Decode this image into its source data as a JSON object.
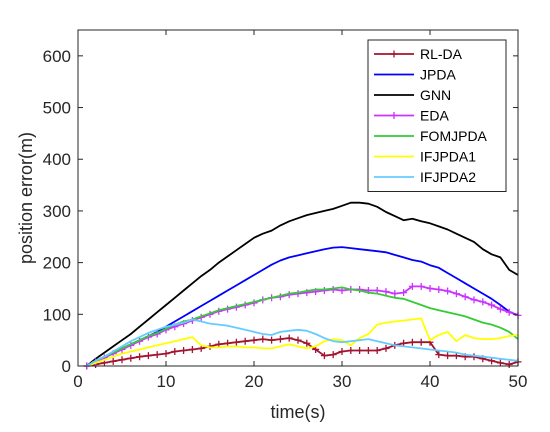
{
  "chart_data": {
    "type": "line",
    "xlabel": "time(s)",
    "ylabel": "position error(m)",
    "xlim": [
      0,
      50
    ],
    "ylim": [
      0,
      650
    ],
    "xticks": [
      0,
      10,
      20,
      30,
      40,
      50
    ],
    "yticks": [
      0,
      100,
      200,
      300,
      400,
      500,
      600
    ],
    "grid": false,
    "legend_position": "top-right",
    "x": [
      1,
      2,
      3,
      4,
      5,
      6,
      7,
      8,
      9,
      10,
      11,
      12,
      13,
      14,
      15,
      16,
      17,
      18,
      19,
      20,
      21,
      22,
      23,
      24,
      25,
      26,
      27,
      28,
      29,
      30,
      31,
      32,
      33,
      34,
      35,
      36,
      37,
      38,
      39,
      40,
      41,
      42,
      43,
      44,
      45,
      46,
      47,
      48,
      49,
      50
    ],
    "series": [
      {
        "name": "RL-DA",
        "color": "#A2142F",
        "marker": "plus",
        "values": [
          0,
          3,
          6,
          9,
          12,
          15,
          18,
          20,
          22,
          24,
          28,
          30,
          32,
          34,
          38,
          42,
          44,
          46,
          48,
          50,
          52,
          50,
          52,
          54,
          50,
          44,
          32,
          20,
          22,
          28,
          30,
          30,
          30,
          30,
          34,
          40,
          44,
          46,
          46,
          46,
          22,
          20,
          20,
          18,
          18,
          14,
          10,
          6,
          3,
          8
        ]
      },
      {
        "name": "JPDA",
        "color": "#0000FF",
        "marker": "none",
        "values": [
          0,
          10,
          18,
          26,
          34,
          42,
          50,
          58,
          66,
          76,
          86,
          96,
          106,
          116,
          126,
          136,
          146,
          156,
          166,
          176,
          186,
          196,
          204,
          210,
          214,
          218,
          222,
          226,
          229,
          230,
          228,
          226,
          224,
          222,
          220,
          215,
          210,
          205,
          202,
          195,
          190,
          180,
          170,
          160,
          150,
          140,
          130,
          118,
          105,
          98
        ]
      },
      {
        "name": "GNN",
        "color": "#000000",
        "marker": "none",
        "values": [
          0,
          14,
          26,
          38,
          50,
          62,
          76,
          90,
          104,
          118,
          132,
          146,
          160,
          174,
          186,
          200,
          212,
          224,
          236,
          248,
          256,
          262,
          272,
          280,
          286,
          292,
          296,
          300,
          304,
          310,
          316,
          316,
          314,
          308,
          298,
          290,
          282,
          285,
          280,
          276,
          270,
          264,
          256,
          248,
          240,
          226,
          216,
          210,
          186,
          176
        ]
      },
      {
        "name": "EDA",
        "color": "#CC33FF",
        "marker": "plus",
        "values": [
          0,
          8,
          16,
          24,
          32,
          40,
          48,
          56,
          62,
          70,
          76,
          82,
          88,
          94,
          100,
          106,
          110,
          114,
          118,
          122,
          128,
          132,
          134,
          138,
          140,
          142,
          144,
          146,
          148,
          146,
          148,
          148,
          146,
          146,
          144,
          140,
          142,
          154,
          154,
          150,
          148,
          145,
          140,
          134,
          128,
          124,
          118,
          110,
          104,
          98
        ]
      },
      {
        "name": "FOMJPDA",
        "color": "#33CC33",
        "marker": "none",
        "values": [
          0,
          10,
          18,
          26,
          34,
          42,
          50,
          58,
          64,
          72,
          80,
          86,
          90,
          96,
          102,
          108,
          112,
          116,
          120,
          124,
          128,
          132,
          136,
          140,
          142,
          145,
          148,
          148,
          150,
          152,
          148,
          146,
          142,
          140,
          136,
          132,
          130,
          124,
          118,
          112,
          108,
          104,
          100,
          96,
          90,
          84,
          80,
          74,
          66,
          52
        ]
      },
      {
        "name": "IFJPDA1",
        "color": "#FFFF00",
        "marker": "none",
        "values": [
          0,
          6,
          12,
          18,
          24,
          28,
          32,
          36,
          40,
          44,
          48,
          52,
          56,
          40,
          36,
          36,
          38,
          38,
          36,
          36,
          34,
          34,
          38,
          42,
          38,
          34,
          38,
          48,
          52,
          50,
          40,
          54,
          62,
          80,
          84,
          86,
          88,
          90,
          92,
          50,
          60,
          66,
          48,
          60,
          54,
          52,
          52,
          54,
          58,
          60
        ]
      },
      {
        "name": "IFJPDA2",
        "color": "#66CCFF",
        "marker": "none",
        "values": [
          0,
          10,
          18,
          28,
          38,
          48,
          56,
          64,
          70,
          76,
          80,
          84,
          90,
          86,
          82,
          80,
          78,
          74,
          70,
          66,
          62,
          60,
          66,
          68,
          70,
          68,
          62,
          54,
          48,
          46,
          48,
          50,
          52,
          48,
          44,
          40,
          38,
          36,
          34,
          32,
          30,
          28,
          26,
          22,
          20,
          18,
          16,
          14,
          12,
          10
        ]
      }
    ]
  }
}
